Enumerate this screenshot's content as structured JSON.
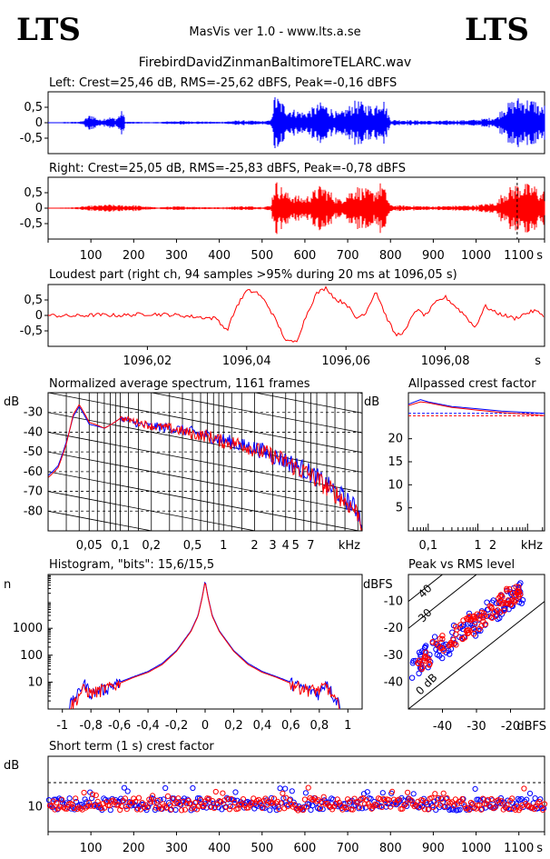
{
  "header": {
    "logo_left": "LTS",
    "logo_right": "LTS",
    "app_title": "MasVis ver 1.0 - www.lts.a.se",
    "file_name": "FirebirdDavidZinmanBaltimoreTELARC.wav"
  },
  "colors": {
    "left": "#0000ff",
    "right": "#ff0000",
    "axis": "#000000"
  },
  "chart_data": [
    {
      "id": "left_waveform",
      "type": "line",
      "title": "Left: Crest=25,46 dB, RMS=-25,62 dBFS, Peak=-0,16 dBFS",
      "xlim": [
        0,
        1160
      ],
      "ylim": [
        -1,
        1
      ],
      "y_ticks": [
        {
          "v": 0.5,
          "label": "0,5"
        },
        {
          "v": 0,
          "label": "0"
        },
        {
          "v": -0.5,
          "label": "-0,5"
        }
      ],
      "envelope": {
        "x": [
          0,
          60,
          80,
          100,
          120,
          140,
          160,
          175,
          180,
          200,
          250,
          300,
          400,
          450,
          500,
          520,
          530,
          560,
          600,
          640,
          680,
          720,
          760,
          780,
          800,
          900,
          1000,
          1050,
          1060,
          1080,
          1100,
          1120,
          1140,
          1150,
          1160
        ],
        "amp": [
          0.01,
          0.03,
          0.05,
          0.3,
          0.1,
          0.2,
          0.15,
          0.45,
          0.04,
          0.03,
          0.02,
          0.06,
          0.03,
          0.08,
          0.05,
          0.08,
          0.95,
          0.5,
          0.35,
          0.7,
          0.3,
          0.75,
          0.55,
          0.95,
          0.1,
          0.06,
          0.1,
          0.2,
          0.5,
          0.7,
          0.85,
          0.8,
          0.75,
          0.5,
          0.6
        ]
      }
    },
    {
      "id": "right_waveform",
      "type": "line",
      "title": "Right: Crest=25,05 dB, RMS=-25,83 dBFS, Peak=-0,78 dBFS",
      "xlim": [
        0,
        1160
      ],
      "ylim": [
        -1,
        1
      ],
      "y_ticks": [
        {
          "v": 0.5,
          "label": "0,5"
        },
        {
          "v": 0,
          "label": "0"
        },
        {
          "v": -0.5,
          "label": "-0,5"
        }
      ],
      "x_ticks": [
        100,
        200,
        300,
        400,
        500,
        600,
        700,
        800,
        900,
        1000,
        1100
      ],
      "x_unit": "s",
      "marker_x": 1096.05,
      "envelope": {
        "x": [
          0,
          60,
          100,
          120,
          140,
          160,
          200,
          250,
          300,
          400,
          450,
          500,
          520,
          530,
          560,
          600,
          640,
          680,
          720,
          760,
          780,
          800,
          900,
          1000,
          1050,
          1060,
          1080,
          1100,
          1120,
          1140,
          1150,
          1160
        ],
        "amp": [
          0.01,
          0.03,
          0.08,
          0.1,
          0.12,
          0.1,
          0.1,
          0.03,
          0.06,
          0.03,
          0.07,
          0.05,
          0.08,
          0.95,
          0.5,
          0.35,
          0.8,
          0.3,
          0.75,
          0.55,
          0.9,
          0.1,
          0.06,
          0.1,
          0.2,
          0.5,
          0.7,
          0.85,
          0.8,
          0.75,
          0.5,
          0.6
        ]
      }
    },
    {
      "id": "loudest_part",
      "type": "line",
      "title": "Loudest part (right ch, 94 samples >95% during 20 ms at 1096,05 s)",
      "xlim": [
        1096.0,
        1096.1
      ],
      "ylim": [
        -1,
        1
      ],
      "y_ticks": [
        {
          "v": 0.5,
          "label": "0,5"
        },
        {
          "v": 0,
          "label": "0"
        },
        {
          "v": -0.5,
          "label": "-0,5"
        }
      ],
      "x_ticks": [
        {
          "v": 1096.02,
          "label": "1096,02"
        },
        {
          "v": 1096.04,
          "label": "1096,04"
        },
        {
          "v": 1096.06,
          "label": "1096,06"
        },
        {
          "v": 1096.08,
          "label": "1096,08"
        }
      ],
      "x_unit": "s",
      "series": [
        {
          "x": [
            1096.0,
            1096.005,
            1096.01,
            1096.015,
            1096.02,
            1096.025,
            1096.03,
            1096.034,
            1096.036,
            1096.038,
            1096.04,
            1096.042,
            1096.044,
            1096.046,
            1096.048,
            1096.05,
            1096.052,
            1096.054,
            1096.056,
            1096.058,
            1096.06,
            1096.062,
            1096.064,
            1096.066,
            1096.068,
            1096.07,
            1096.072,
            1096.074,
            1096.076,
            1096.078,
            1096.08,
            1096.082,
            1096.084,
            1096.086,
            1096.088,
            1096.09,
            1096.092,
            1096.094,
            1096.096,
            1096.098,
            1096.1
          ],
          "y": [
            0.0,
            -0.02,
            0.02,
            0.0,
            0.05,
            0.02,
            -0.05,
            -0.1,
            -0.5,
            0.3,
            0.8,
            0.75,
            0.4,
            -0.2,
            -0.85,
            -0.85,
            0.0,
            0.7,
            0.9,
            0.5,
            0.4,
            -0.1,
            0.1,
            0.8,
            0.0,
            -0.65,
            -0.5,
            0.2,
            0.0,
            0.4,
            0.6,
            0.3,
            0.0,
            -0.4,
            0.3,
            0.1,
            0.0,
            -0.1,
            0.05,
            0.15,
            0.0
          ]
        }
      ]
    },
    {
      "id": "avg_spectrum",
      "type": "line",
      "title": "Normalized average spectrum, 1161 frames",
      "ylabel": "dB",
      "xlabel": "kHz",
      "x_scale": "log",
      "xlim": [
        0.02,
        22
      ],
      "ylim": [
        -90,
        -20
      ],
      "y_ticks": [
        -30,
        -40,
        -50,
        -60,
        -70,
        -80
      ],
      "x_ticks": [
        {
          "v": 0.05,
          "label": "0,05"
        },
        {
          "v": 0.1,
          "label": "0,1"
        },
        {
          "v": 0.2,
          "label": "0,2"
        },
        {
          "v": 0.5,
          "label": "0,5"
        },
        {
          "v": 1,
          "label": "1"
        },
        {
          "v": 2,
          "label": "2"
        },
        {
          "v": 3,
          "label": "3"
        },
        {
          "v": 4,
          "label": "4"
        },
        {
          "v": 5,
          "label": "5"
        },
        {
          "v": 7,
          "label": "7"
        }
      ],
      "series": [
        {
          "x": [
            0.02,
            0.025,
            0.03,
            0.035,
            0.04,
            0.05,
            0.07,
            0.1,
            0.15,
            0.2,
            0.3,
            0.5,
            0.7,
            1,
            1.5,
            2,
            3,
            5,
            7,
            10,
            15,
            20,
            22
          ],
          "y": [
            -62,
            -57,
            -45,
            -32,
            -27,
            -36,
            -38,
            -33,
            -36,
            -37,
            -38,
            -40,
            -42,
            -44,
            -47,
            -48,
            -52,
            -57,
            -61,
            -67,
            -74,
            -80,
            -86
          ]
        },
        {
          "x": [
            0.02,
            0.025,
            0.03,
            0.035,
            0.04,
            0.05,
            0.07,
            0.1,
            0.15,
            0.2,
            0.3,
            0.5,
            0.7,
            1,
            1.5,
            2,
            3,
            5,
            7,
            10,
            15,
            20,
            22
          ],
          "y": [
            -63,
            -58,
            -46,
            -31,
            -26,
            -35,
            -38,
            -33,
            -35,
            -37,
            -38,
            -41,
            -42,
            -45,
            -46,
            -49,
            -52,
            -58,
            -62,
            -68,
            -75,
            -81,
            -87
          ]
        }
      ]
    },
    {
      "id": "allpassed_crest",
      "type": "line",
      "title": "Allpassed crest factor",
      "ylabel": "dB",
      "xlabel": "kHz",
      "x_scale": "log",
      "xlim": [
        0.04,
        22
      ],
      "ylim": [
        0,
        30
      ],
      "y_ticks": [
        5,
        10,
        15,
        20
      ],
      "x_ticks": [
        {
          "v": 0.1,
          "label": "0,1"
        },
        {
          "v": 1,
          "label": "1"
        },
        {
          "v": 2,
          "label": "2"
        }
      ],
      "ref_levels": [
        25.5,
        25.0
      ],
      "series": [
        {
          "x": [
            0.04,
            0.07,
            0.1,
            0.3,
            1,
            3,
            10,
            22
          ],
          "y": [
            27.5,
            28.5,
            28,
            27,
            26.5,
            26,
            25.7,
            25.5
          ]
        },
        {
          "x": [
            0.04,
            0.07,
            0.1,
            0.3,
            1,
            3,
            10,
            22
          ],
          "y": [
            27.2,
            28.0,
            27.8,
            26.8,
            26.2,
            25.7,
            25.3,
            25.0
          ]
        }
      ]
    },
    {
      "id": "histogram",
      "type": "line",
      "title": "Histogram, \"bits\": 15,6/15,5",
      "ylabel": "n",
      "y_scale": "log",
      "xlim": [
        -1.1,
        1.1
      ],
      "ylim": [
        1,
        100000
      ],
      "y_ticks": [
        10,
        100,
        1000
      ],
      "x_ticks": [
        {
          "v": -1,
          "label": "-1"
        },
        {
          "v": -0.8,
          "label": "-0,8"
        },
        {
          "v": -0.6,
          "label": "-0,6"
        },
        {
          "v": -0.4,
          "label": "-0,4"
        },
        {
          "v": -0.2,
          "label": "-0,2"
        },
        {
          "v": 0,
          "label": "0"
        },
        {
          "v": 0.2,
          "label": "0,2"
        },
        {
          "v": 0.4,
          "label": "0,4"
        },
        {
          "v": 0.6,
          "label": "0,6"
        },
        {
          "v": 0.8,
          "label": "0,8"
        },
        {
          "v": 1,
          "label": "1"
        }
      ],
      "series": [
        {
          "x": [
            -0.95,
            -0.9,
            -0.85,
            -0.8,
            -0.7,
            -0.6,
            -0.5,
            -0.4,
            -0.3,
            -0.2,
            -0.1,
            -0.05,
            -0.02,
            0,
            0.02,
            0.05,
            0.1,
            0.2,
            0.3,
            0.4,
            0.5,
            0.6,
            0.7,
            0.8,
            0.85,
            0.9,
            0.95
          ],
          "y": [
            1.5,
            3,
            10,
            4,
            6,
            10,
            16,
            25,
            50,
            150,
            800,
            3000,
            15000,
            60000,
            15000,
            3000,
            800,
            150,
            50,
            25,
            16,
            10,
            6,
            4,
            12,
            3,
            1.5
          ]
        },
        {
          "x": [
            -0.95,
            -0.9,
            -0.85,
            -0.8,
            -0.7,
            -0.6,
            -0.5,
            -0.4,
            -0.3,
            -0.2,
            -0.1,
            -0.05,
            -0.02,
            0,
            0.02,
            0.05,
            0.1,
            0.2,
            0.3,
            0.4,
            0.5,
            0.6,
            0.7,
            0.8,
            0.85,
            0.9,
            0.95
          ],
          "y": [
            1.2,
            2.5,
            6,
            4,
            6,
            9,
            15,
            23,
            45,
            140,
            750,
            2800,
            14000,
            55000,
            14000,
            2800,
            750,
            140,
            45,
            23,
            15,
            9,
            6,
            5,
            8,
            2.5,
            1.2
          ]
        }
      ]
    },
    {
      "id": "peak_vs_rms",
      "type": "scatter",
      "title": "Peak vs RMS level",
      "ylabel": "dBFS",
      "xlabel": "dBFS",
      "xlim": [
        -50,
        -10
      ],
      "ylim": [
        -50,
        0
      ],
      "y_ticks": [
        -10,
        -20,
        -30,
        -40
      ],
      "x_ticks": [
        -40,
        -30,
        -20
      ],
      "diagonals": [
        {
          "offset": 0,
          "label": "0 dB"
        },
        {
          "offset": 30,
          "label": "30"
        },
        {
          "offset": 40,
          "label": "40"
        }
      ],
      "series": [
        {
          "x": [
            -49,
            -47,
            -45,
            -44,
            -42,
            -40,
            -38,
            -36,
            -34,
            -32,
            -30,
            -28,
            -26,
            -24,
            -22,
            -20,
            -18,
            -16
          ],
          "y": [
            -35,
            -33,
            -30,
            -33,
            -26,
            -28,
            -26,
            -21,
            -23,
            -18,
            -19,
            -16,
            -13,
            -14,
            -10,
            -9,
            -8,
            -6
          ]
        },
        {
          "x": [
            -48,
            -46,
            -45,
            -43,
            -41,
            -39,
            -37,
            -35,
            -33,
            -31,
            -29,
            -27,
            -25,
            -23,
            -21,
            -19,
            -17
          ],
          "y": [
            -37,
            -34,
            -32,
            -29,
            -28,
            -25,
            -24,
            -22,
            -20,
            -19,
            -16,
            -15,
            -13,
            -11,
            -9,
            -8,
            -6
          ]
        }
      ]
    },
    {
      "id": "short_term_crest",
      "type": "scatter",
      "title": "Short term (1 s) crest factor",
      "ylabel": "dB",
      "xlim": [
        0,
        1160
      ],
      "ylim": [
        0,
        30
      ],
      "y_ticks": [
        {
          "v": 10,
          "label": "10"
        }
      ],
      "x_ticks": [
        100,
        200,
        300,
        400,
        500,
        600,
        700,
        800,
        900,
        1000,
        1100
      ],
      "x_unit": "s",
      "ref_level": 19.5,
      "base_level": 11,
      "spread": 2.5
    }
  ]
}
